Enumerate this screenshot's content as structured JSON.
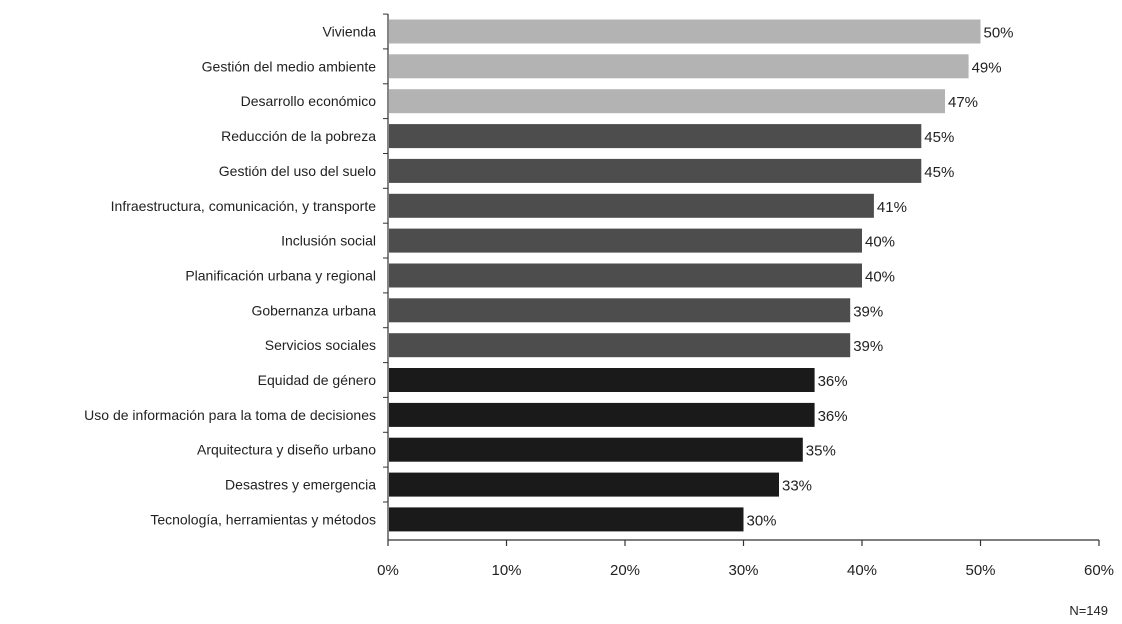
{
  "chart_data": {
    "type": "bar",
    "orientation": "horizontal",
    "categories": [
      "Vivienda",
      "Gestión del medio ambiente",
      "Desarrollo económico",
      "Reducción de la pobreza",
      "Gestión del uso del suelo",
      "Infraestructura, comunicación, y transporte",
      "Inclusión social",
      "Planificación urbana y regional",
      "Gobernanza urbana",
      "Servicios sociales",
      "Equidad de género",
      "Uso de información para la toma de decisiones",
      "Arquitectura y diseño urbano",
      "Desastres y emergencia",
      "Tecnología, herramientas y métodos"
    ],
    "values": [
      50,
      49,
      47,
      45,
      45,
      41,
      40,
      40,
      39,
      39,
      36,
      36,
      35,
      33,
      30
    ],
    "value_labels": [
      "50%",
      "49%",
      "47%",
      "45%",
      "45%",
      "41%",
      "40%",
      "40%",
      "39%",
      "39%",
      "36%",
      "36%",
      "35%",
      "33%",
      "30%"
    ],
    "bar_colors": [
      "#b3b3b3",
      "#b3b3b3",
      "#b3b3b3",
      "#4d4d4d",
      "#4d4d4d",
      "#4d4d4d",
      "#4d4d4d",
      "#4d4d4d",
      "#4d4d4d",
      "#4d4d4d",
      "#1a1a1a",
      "#1a1a1a",
      "#1a1a1a",
      "#1a1a1a",
      "#1a1a1a"
    ],
    "xlim": [
      0,
      60
    ],
    "x_ticks": [
      0,
      10,
      20,
      30,
      40,
      50,
      60
    ],
    "x_tick_labels": [
      "0%",
      "10%",
      "20%",
      "30%",
      "40%",
      "50%",
      "60%"
    ],
    "title": "",
    "xlabel": "",
    "ylabel": "",
    "grid": false,
    "legend": "none",
    "note": "N=149"
  }
}
